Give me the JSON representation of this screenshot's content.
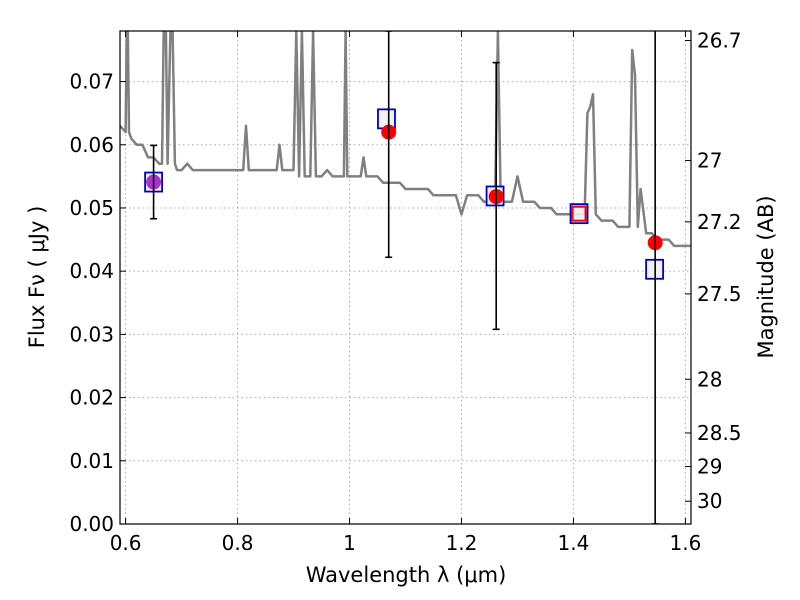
{
  "chart_data": {
    "type": "scatter",
    "xlabel": "Wavelength  λ (μm)",
    "ylabel": "Flux  Fν  ( μJy )",
    "ylabel_right": "Magnitude (AB)",
    "xlim": [
      0.59,
      1.61
    ],
    "ylim": [
      0.0,
      0.078
    ],
    "grid": true,
    "x_ticks": [
      0.6,
      0.8,
      1.0,
      1.2,
      1.4,
      1.6
    ],
    "x_tick_labels": [
      "0.6",
      "0.8",
      "1",
      "1.2",
      "1.4",
      "1.6"
    ],
    "y_ticks": [
      0.0,
      0.01,
      0.02,
      0.03,
      0.04,
      0.05,
      0.06,
      0.07
    ],
    "y_tick_labels": [
      "0.00",
      "0.01",
      "0.02",
      "0.03",
      "0.04",
      "0.05",
      "0.06",
      "0.07"
    ],
    "right_ticks": [
      {
        "label": "26.7",
        "flux": 0.0765
      },
      {
        "label": "27",
        "flux": 0.0575
      },
      {
        "label": "27.2",
        "flux": 0.0478
      },
      {
        "label": "27.5",
        "flux": 0.0364
      },
      {
        "label": "28",
        "flux": 0.0229
      },
      {
        "label": "28.5",
        "flux": 0.0144
      },
      {
        "label": "29",
        "flux": 0.0091
      },
      {
        "label": "30",
        "flux": 0.0036
      }
    ],
    "model_spectrum": {
      "color": "#808080",
      "x": [
        0.59,
        0.6,
        0.602,
        0.604,
        0.606,
        0.61,
        0.62,
        0.63,
        0.64,
        0.65,
        0.66,
        0.665,
        0.668,
        0.672,
        0.675,
        0.68,
        0.684,
        0.688,
        0.692,
        0.696,
        0.7,
        0.71,
        0.72,
        0.73,
        0.74,
        0.75,
        0.76,
        0.77,
        0.78,
        0.79,
        0.8,
        0.81,
        0.815,
        0.82,
        0.83,
        0.84,
        0.85,
        0.86,
        0.87,
        0.875,
        0.88,
        0.89,
        0.9,
        0.905,
        0.91,
        0.915,
        0.92,
        0.93,
        0.935,
        0.94,
        0.95,
        0.96,
        0.97,
        0.98,
        0.99,
        0.993,
        0.996,
        1.0,
        1.01,
        1.02,
        1.025,
        1.03,
        1.04,
        1.05,
        1.06,
        1.07,
        1.08,
        1.09,
        1.1,
        1.11,
        1.12,
        1.13,
        1.14,
        1.15,
        1.16,
        1.17,
        1.18,
        1.19,
        1.2,
        1.21,
        1.22,
        1.23,
        1.24,
        1.25,
        1.26,
        1.265,
        1.27,
        1.28,
        1.29,
        1.3,
        1.31,
        1.32,
        1.325,
        1.33,
        1.34,
        1.35,
        1.36,
        1.37,
        1.38,
        1.39,
        1.4,
        1.41,
        1.42,
        1.425,
        1.43,
        1.435,
        1.44,
        1.45,
        1.46,
        1.47,
        1.48,
        1.49,
        1.5,
        1.505,
        1.51,
        1.515,
        1.52,
        1.53,
        1.54,
        1.55,
        1.56,
        1.57,
        1.58,
        1.59,
        1.6,
        1.61
      ],
      "y": [
        0.063,
        0.062,
        0.078,
        0.078,
        0.062,
        0.061,
        0.06,
        0.06,
        0.058,
        0.058,
        0.057,
        0.057,
        0.078,
        0.078,
        0.057,
        0.078,
        0.078,
        0.057,
        0.056,
        0.056,
        0.056,
        0.057,
        0.056,
        0.056,
        0.056,
        0.056,
        0.056,
        0.056,
        0.056,
        0.056,
        0.056,
        0.056,
        0.063,
        0.056,
        0.056,
        0.056,
        0.056,
        0.056,
        0.056,
        0.06,
        0.056,
        0.056,
        0.056,
        0.078,
        0.055,
        0.078,
        0.055,
        0.055,
        0.078,
        0.055,
        0.055,
        0.056,
        0.055,
        0.055,
        0.055,
        0.078,
        0.055,
        0.055,
        0.055,
        0.055,
        0.058,
        0.055,
        0.055,
        0.055,
        0.054,
        0.054,
        0.054,
        0.054,
        0.053,
        0.053,
        0.053,
        0.053,
        0.053,
        0.052,
        0.052,
        0.052,
        0.052,
        0.052,
        0.049,
        0.052,
        0.052,
        0.052,
        0.051,
        0.051,
        0.051,
        0.078,
        0.051,
        0.051,
        0.051,
        0.055,
        0.051,
        0.051,
        0.051,
        0.051,
        0.05,
        0.05,
        0.05,
        0.049,
        0.049,
        0.049,
        0.049,
        0.049,
        0.049,
        0.065,
        0.066,
        0.068,
        0.049,
        0.048,
        0.048,
        0.048,
        0.047,
        0.047,
        0.047,
        0.075,
        0.071,
        0.047,
        0.053,
        0.046,
        0.046,
        0.045,
        0.045,
        0.045,
        0.044,
        0.044,
        0.044,
        0.044
      ]
    },
    "model_photometry": {
      "marker": "open-square",
      "color": "#0000cc",
      "x": [
        0.65,
        1.066,
        1.26,
        1.41,
        1.545
      ],
      "y": [
        0.0541,
        0.0641,
        0.0519,
        0.0491,
        0.0403
      ]
    },
    "observed_photometry": {
      "marker": "filled-circle",
      "color": "#ff0000",
      "x": [
        0.65,
        1.07,
        1.262,
        1.41,
        1.546
      ],
      "y": [
        0.0541,
        0.062,
        0.0518,
        0.0491,
        0.0445
      ],
      "y_err_low": [
        0.0058,
        0.0198,
        0.021,
        0.0,
        0.0445
      ],
      "y_err_high": [
        0.0058,
        0.016,
        0.0212,
        0.0,
        0.034
      ]
    },
    "colors": {
      "overlap_marker": "#aa33cc",
      "open_marker_fill": "#f0f0f0",
      "error_bar": "#000000",
      "grid": "#aaaaaa"
    }
  }
}
